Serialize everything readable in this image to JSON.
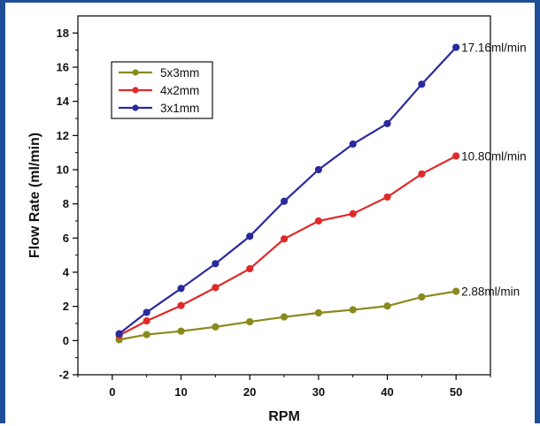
{
  "chart_data": {
    "type": "line",
    "title": "",
    "xlabel": "RPM",
    "ylabel": "Flow Rate (ml/min)",
    "xlim": [
      -5,
      55
    ],
    "ylim": [
      -2,
      19
    ],
    "x_ticks": [
      0,
      10,
      20,
      30,
      40,
      50
    ],
    "y_ticks": [
      -2,
      0,
      2,
      4,
      6,
      8,
      10,
      12,
      14,
      16,
      18
    ],
    "x": [
      1,
      5,
      10,
      15,
      20,
      25,
      30,
      35,
      40,
      45,
      50
    ],
    "series": [
      {
        "name": "5x3mm",
        "color": "#8a8a1e",
        "values": [
          0.05,
          0.35,
          0.55,
          0.8,
          1.1,
          1.38,
          1.62,
          1.8,
          2.02,
          2.55,
          2.88
        ]
      },
      {
        "name": "4x2mm",
        "color": "#e02a2a",
        "values": [
          0.3,
          1.15,
          2.05,
          3.1,
          4.2,
          5.95,
          7.0,
          7.42,
          8.4,
          9.75,
          10.8
        ]
      },
      {
        "name": "3x1mm",
        "color": "#2a2a9e",
        "values": [
          0.4,
          1.65,
          3.05,
          4.5,
          6.1,
          8.15,
          10.0,
          11.5,
          12.7,
          15.0,
          17.16
        ]
      }
    ],
    "annotations": [
      {
        "text": "17.16ml/min",
        "series": "3x1mm"
      },
      {
        "text": "10.80ml/min",
        "series": "4x2mm"
      },
      {
        "text": "2.88ml/min",
        "series": "5x3mm"
      }
    ],
    "legend": "top-left",
    "grid": false
  }
}
